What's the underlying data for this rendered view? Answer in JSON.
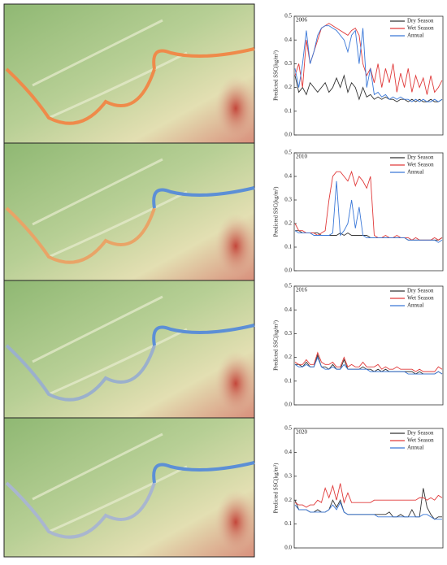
{
  "chart_data": [
    {
      "type": "line",
      "annotation": "2006",
      "y_label": "Predicted SSC(kg/m³)",
      "ylim": [
        0,
        0.5
      ],
      "yticks": [
        {
          "value": 0,
          "label": "0.0"
        },
        0.1,
        0.2,
        0.3,
        0.4,
        0.5
      ],
      "legend": "upper right",
      "series": [
        {
          "name": "Dry Season",
          "color": "#333333",
          "values": [
            0.25,
            0.18,
            0.2,
            0.17,
            0.22,
            0.2,
            0.18,
            0.2,
            0.22,
            0.18,
            0.2,
            0.24,
            0.2,
            0.25,
            0.18,
            0.22,
            0.2,
            0.15,
            0.2,
            0.16,
            0.17,
            0.15,
            0.16,
            0.15,
            0.16,
            0.15,
            0.15,
            0.14,
            0.15,
            0.15,
            0.14,
            0.15,
            0.14,
            0.15,
            0.14,
            0.14,
            0.15,
            0.14,
            0.14,
            0.15
          ]
        },
        {
          "name": "Wet Season",
          "color": "#e03a3a",
          "values": [
            0.25,
            0.3,
            0.2,
            0.4,
            0.3,
            0.35,
            0.4,
            0.45,
            0.46,
            0.47,
            0.46,
            0.45,
            0.44,
            0.43,
            0.42,
            0.44,
            0.45,
            0.42,
            0.3,
            0.25,
            0.28,
            0.22,
            0.3,
            0.2,
            0.28,
            0.22,
            0.3,
            0.18,
            0.26,
            0.2,
            0.28,
            0.18,
            0.25,
            0.2,
            0.24,
            0.17,
            0.25,
            0.18,
            0.2,
            0.23
          ]
        },
        {
          "name": "Annual",
          "color": "#3a78d8",
          "values": [
            0.28,
            0.2,
            0.3,
            0.44,
            0.3,
            0.35,
            0.42,
            0.45,
            0.46,
            0.46,
            0.45,
            0.44,
            0.42,
            0.4,
            0.35,
            0.42,
            0.44,
            0.3,
            0.45,
            0.2,
            0.28,
            0.17,
            0.18,
            0.16,
            0.17,
            0.15,
            0.16,
            0.15,
            0.16,
            0.15,
            0.15,
            0.14,
            0.15,
            0.14,
            0.15,
            0.14,
            0.14,
            0.15,
            0.14,
            0.15
          ]
        }
      ]
    },
    {
      "type": "line",
      "annotation": "2010",
      "y_label": "Predicted SSC(kg/m³)",
      "ylim": [
        0,
        0.5
      ],
      "yticks": [
        {
          "value": 0,
          "label": "0.0"
        },
        0.1,
        0.2,
        0.3,
        0.4,
        0.5
      ],
      "legend": "upper right",
      "series": [
        {
          "name": "Dry Season",
          "color": "#333333",
          "values": [
            0.17,
            0.17,
            0.16,
            0.16,
            0.16,
            0.16,
            0.16,
            0.15,
            0.15,
            0.15,
            0.15,
            0.15,
            0.16,
            0.15,
            0.16,
            0.15,
            0.15,
            0.15,
            0.15,
            0.15,
            0.14,
            0.14,
            0.14,
            0.14,
            0.14,
            0.14,
            0.14,
            0.14,
            0.14,
            0.14,
            0.13,
            0.13,
            0.13,
            0.13,
            0.13,
            0.13,
            0.13,
            0.13,
            0.13,
            0.14
          ]
        },
        {
          "name": "Wet Season",
          "color": "#e03a3a",
          "values": [
            0.2,
            0.17,
            0.17,
            0.16,
            0.16,
            0.16,
            0.15,
            0.16,
            0.17,
            0.3,
            0.4,
            0.42,
            0.42,
            0.4,
            0.38,
            0.42,
            0.36,
            0.4,
            0.38,
            0.35,
            0.4,
            0.15,
            0.14,
            0.14,
            0.15,
            0.14,
            0.14,
            0.15,
            0.14,
            0.14,
            0.14,
            0.13,
            0.14,
            0.13,
            0.13,
            0.13,
            0.13,
            0.14,
            0.13,
            0.14
          ]
        },
        {
          "name": "Annual",
          "color": "#3a78d8",
          "values": [
            0.17,
            0.16,
            0.16,
            0.16,
            0.16,
            0.15,
            0.15,
            0.15,
            0.15,
            0.15,
            0.16,
            0.38,
            0.15,
            0.17,
            0.2,
            0.3,
            0.18,
            0.27,
            0.15,
            0.14,
            0.14,
            0.14,
            0.14,
            0.14,
            0.14,
            0.14,
            0.14,
            0.14,
            0.14,
            0.14,
            0.13,
            0.13,
            0.13,
            0.13,
            0.13,
            0.13,
            0.13,
            0.13,
            0.12,
            0.13
          ]
        }
      ]
    },
    {
      "type": "line",
      "annotation": "2016",
      "y_label": "Predicted SSC(kg/m³)",
      "ylim": [
        0,
        0.5
      ],
      "yticks": [
        {
          "value": 0,
          "label": "0.0"
        },
        0.1,
        0.2,
        0.3,
        0.4,
        0.5
      ],
      "legend": "upper right",
      "series": [
        {
          "name": "Dry Season",
          "color": "#333333",
          "values": [
            0.17,
            0.17,
            0.16,
            0.18,
            0.16,
            0.16,
            0.21,
            0.16,
            0.16,
            0.15,
            0.17,
            0.15,
            0.15,
            0.19,
            0.15,
            0.15,
            0.15,
            0.15,
            0.16,
            0.15,
            0.15,
            0.14,
            0.15,
            0.14,
            0.15,
            0.14,
            0.14,
            0.14,
            0.14,
            0.14,
            0.14,
            0.14,
            0.13,
            0.14,
            0.13,
            0.13,
            0.13,
            0.13,
            0.14,
            0.13
          ]
        },
        {
          "name": "Wet Season",
          "color": "#e03a3a",
          "values": [
            0.18,
            0.17,
            0.17,
            0.19,
            0.17,
            0.17,
            0.22,
            0.18,
            0.17,
            0.17,
            0.18,
            0.16,
            0.16,
            0.2,
            0.16,
            0.17,
            0.16,
            0.16,
            0.18,
            0.16,
            0.16,
            0.16,
            0.17,
            0.15,
            0.16,
            0.15,
            0.15,
            0.16,
            0.15,
            0.15,
            0.15,
            0.15,
            0.14,
            0.15,
            0.14,
            0.14,
            0.14,
            0.14,
            0.16,
            0.15
          ]
        },
        {
          "name": "Annual",
          "color": "#3a78d8",
          "values": [
            0.17,
            0.16,
            0.16,
            0.17,
            0.16,
            0.16,
            0.2,
            0.16,
            0.15,
            0.15,
            0.16,
            0.15,
            0.15,
            0.17,
            0.15,
            0.15,
            0.15,
            0.15,
            0.15,
            0.15,
            0.14,
            0.14,
            0.14,
            0.14,
            0.14,
            0.14,
            0.14,
            0.14,
            0.14,
            0.14,
            0.13,
            0.13,
            0.13,
            0.13,
            0.13,
            0.13,
            0.13,
            0.13,
            0.14,
            0.13
          ]
        }
      ]
    },
    {
      "type": "line",
      "annotation": "2020",
      "y_label": "Predicted SSC(kg/m³)",
      "ylim": [
        0,
        0.5
      ],
      "yticks": [
        {
          "value": 0,
          "label": "0.0"
        },
        0.1,
        0.2,
        0.3,
        0.4,
        0.5
      ],
      "legend": "upper right",
      "series": [
        {
          "name": "Dry Season",
          "color": "#333333",
          "values": [
            0.2,
            0.16,
            0.16,
            0.16,
            0.15,
            0.15,
            0.16,
            0.15,
            0.15,
            0.16,
            0.2,
            0.17,
            0.2,
            0.15,
            0.14,
            0.14,
            0.14,
            0.14,
            0.14,
            0.14,
            0.14,
            0.14,
            0.14,
            0.14,
            0.14,
            0.15,
            0.13,
            0.13,
            0.14,
            0.13,
            0.13,
            0.16,
            0.13,
            0.13,
            0.25,
            0.17,
            0.14,
            0.12,
            0.13,
            0.13
          ]
        },
        {
          "name": "Wet Season",
          "color": "#e03a3a",
          "values": [
            0.19,
            0.18,
            0.18,
            0.17,
            0.18,
            0.18,
            0.2,
            0.19,
            0.25,
            0.21,
            0.26,
            0.2,
            0.27,
            0.19,
            0.23,
            0.19,
            0.19,
            0.19,
            0.19,
            0.19,
            0.19,
            0.2,
            0.2,
            0.2,
            0.2,
            0.2,
            0.2,
            0.2,
            0.2,
            0.2,
            0.2,
            0.2,
            0.2,
            0.21,
            0.21,
            0.2,
            0.21,
            0.2,
            0.22,
            0.21
          ]
        },
        {
          "name": "Annual",
          "color": "#3a78d8",
          "values": [
            0.18,
            0.16,
            0.16,
            0.16,
            0.15,
            0.15,
            0.15,
            0.15,
            0.15,
            0.16,
            0.18,
            0.16,
            0.19,
            0.15,
            0.14,
            0.14,
            0.14,
            0.14,
            0.14,
            0.14,
            0.14,
            0.14,
            0.13,
            0.13,
            0.13,
            0.13,
            0.13,
            0.13,
            0.13,
            0.13,
            0.13,
            0.13,
            0.13,
            0.13,
            0.14,
            0.14,
            0.13,
            0.12,
            0.12,
            0.12
          ]
        }
      ]
    }
  ]
}
